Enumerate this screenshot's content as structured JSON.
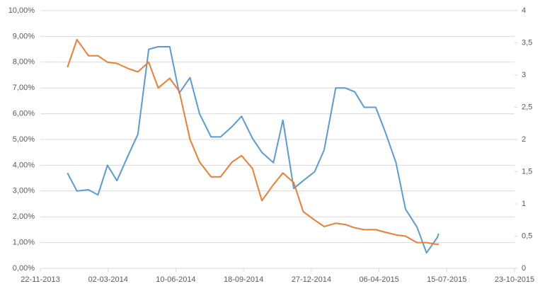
{
  "chart_data": {
    "type": "line",
    "x": [
      "2014-01-01",
      "2014-01-15",
      "2014-02-01",
      "2014-02-15",
      "2014-03-01",
      "2014-03-15",
      "2014-04-01",
      "2014-04-15",
      "2014-05-01",
      "2014-05-15",
      "2014-06-01",
      "2014-06-15",
      "2014-07-01",
      "2014-07-15",
      "2014-08-01",
      "2014-08-15",
      "2014-09-01",
      "2014-09-15",
      "2014-10-01",
      "2014-10-15",
      "2014-11-01",
      "2014-11-15",
      "2014-12-01",
      "2014-12-15",
      "2015-01-01",
      "2015-01-15",
      "2015-02-01",
      "2015-02-15",
      "2015-03-01",
      "2015-03-15",
      "2015-04-01",
      "2015-04-15",
      "2015-05-01",
      "2015-05-15",
      "2015-06-01",
      "2015-06-15",
      "2015-07-01",
      "2015-07-03"
    ],
    "series": [
      {
        "color": "#5b9bd5",
        "values": [
          3.7,
          3.0,
          3.05,
          2.85,
          4.0,
          3.4,
          4.4,
          5.2,
          8.5,
          8.6,
          8.6,
          6.8,
          7.4,
          6.0,
          5.1,
          5.1,
          5.5,
          5.9,
          5.05,
          4.5,
          4.1,
          5.75,
          3.1,
          3.4,
          3.75,
          4.6,
          7.0,
          7.0,
          6.85,
          6.25,
          6.25,
          5.3,
          4.1,
          2.3,
          1.6,
          0.6,
          1.2,
          1.35
        ]
      },
      {
        "color": "#ed7d31",
        "axis": "y2",
        "values": [
          3.12,
          3.55,
          3.3,
          3.3,
          3.2,
          3.18,
          3.1,
          3.05,
          3.2,
          2.8,
          2.95,
          2.75,
          2.0,
          1.65,
          1.42,
          1.42,
          1.65,
          1.75,
          1.55,
          1.05,
          1.3,
          1.48,
          1.33,
          0.88,
          0.75,
          0.65,
          0.7,
          0.68,
          0.63,
          0.6,
          0.6,
          0.56,
          0.52,
          0.5,
          0.4,
          0.4,
          0.37,
          0.38
        ]
      }
    ],
    "xlim": [
      "2013-11-22",
      "2015-10-23"
    ],
    "xticks": [
      {
        "value": "2013-11-22",
        "label": "22-11-2013"
      },
      {
        "value": "2014-03-02",
        "label": "02-03-2014"
      },
      {
        "value": "2014-06-10",
        "label": "10-06-2014"
      },
      {
        "value": "2014-09-18",
        "label": "18-09-2014"
      },
      {
        "value": "2014-12-27",
        "label": "27-12-2014"
      },
      {
        "value": "2015-04-06",
        "label": "06-04-2015"
      },
      {
        "value": "2015-07-15",
        "label": "15-07-2015"
      },
      {
        "value": "2015-10-23",
        "label": "23-10-2015"
      }
    ],
    "ylim": [
      0,
      10
    ],
    "yticks": [
      {
        "value": 0,
        "label": "0,00%"
      },
      {
        "value": 1,
        "label": "1,00%"
      },
      {
        "value": 2,
        "label": "2,00%"
      },
      {
        "value": 3,
        "label": "3,00%"
      },
      {
        "value": 4,
        "label": "4,00%"
      },
      {
        "value": 5,
        "label": "5,00%"
      },
      {
        "value": 6,
        "label": "6,00%"
      },
      {
        "value": 7,
        "label": "7,00%"
      },
      {
        "value": 8,
        "label": "8,00%"
      },
      {
        "value": 9,
        "label": "9,00%"
      },
      {
        "value": 10,
        "label": "10,00%"
      }
    ],
    "y2lim": [
      0,
      4
    ],
    "y2ticks": [
      0,
      {
        "value": 0.5,
        "label": "0,5"
      },
      1,
      {
        "value": 1.5,
        "label": "1,5"
      },
      2,
      {
        "value": 2.5,
        "label": "2,5"
      },
      3,
      {
        "value": 3.5,
        "label": "3,5"
      },
      4
    ],
    "grid": true
  }
}
